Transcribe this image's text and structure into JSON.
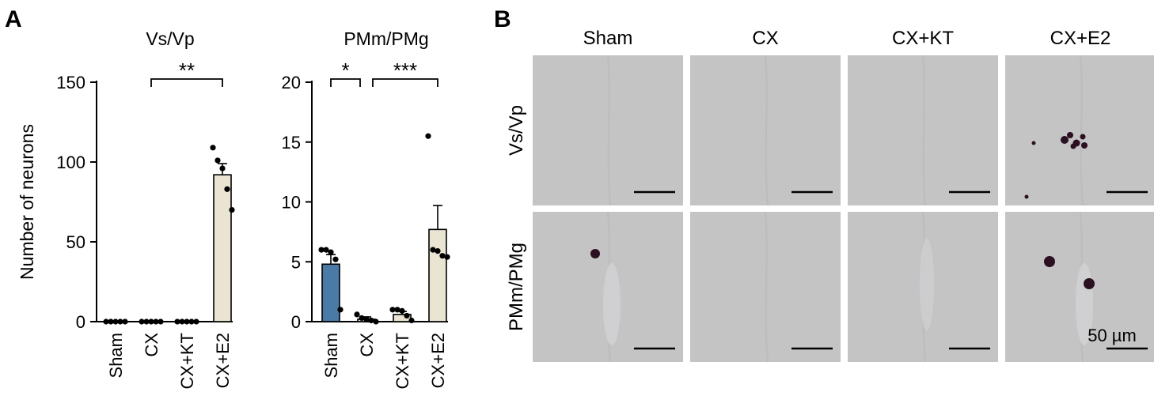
{
  "panel_labels": {
    "a": "A",
    "b": "B"
  },
  "chart_data": [
    {
      "type": "bar",
      "title": "Vs/Vp",
      "ylabel": "Number of neurons",
      "categories": [
        "Sham",
        "CX",
        "CX+KT",
        "CX+E2"
      ],
      "means": [
        0,
        0,
        0,
        92
      ],
      "sem": [
        0,
        0,
        0,
        7
      ],
      "points": [
        [
          0,
          0,
          0,
          0,
          0
        ],
        [
          0,
          0,
          0,
          0,
          0
        ],
        [
          0,
          0,
          0,
          0,
          0
        ],
        [
          109,
          101,
          96,
          83,
          70
        ]
      ],
      "ylim": [
        0,
        150
      ],
      "yticks": [
        0,
        50,
        100,
        150
      ],
      "bar_colors": [
        "#4a7aa6",
        "#eae4d3",
        "#eae4d3",
        "#eae4d3"
      ],
      "significance": [
        {
          "from": 1,
          "to": 3,
          "label": "**"
        }
      ]
    },
    {
      "type": "bar",
      "title": "PMm/PMg",
      "ylabel": "",
      "categories": [
        "Sham",
        "CX",
        "CX+KT",
        "CX+E2"
      ],
      "means": [
        4.8,
        0.2,
        0.6,
        7.7
      ],
      "sem": [
        0.8,
        0.2,
        0.25,
        2.0
      ],
      "points": [
        [
          6.0,
          6.0,
          5.8,
          5.2,
          1.0
        ],
        [
          0.6,
          0.3,
          0.2,
          0.1,
          0.0
        ],
        [
          1.0,
          1.0,
          0.9,
          0.5,
          0.1
        ],
        [
          15.5,
          6.0,
          5.9,
          5.5,
          5.4
        ]
      ],
      "ylim": [
        0,
        20
      ],
      "yticks": [
        0,
        5,
        10,
        15,
        20
      ],
      "bar_colors": [
        "#4a7aa6",
        "#eae4d3",
        "#eae4d3",
        "#eae4d3"
      ],
      "significance": [
        {
          "from": 0,
          "to": 1,
          "label": "*"
        },
        {
          "from": 1,
          "to": 3,
          "label": "***"
        }
      ]
    }
  ],
  "micrographs": {
    "columns": [
      "Sham",
      "CX",
      "CX+KT",
      "CX+E2"
    ],
    "rows": [
      "Vs/Vp",
      "PMm/PMg"
    ],
    "scale_bar_label": "50 µm",
    "background_color": "#c4c4c4",
    "stain_color": "#2a1020"
  },
  "colors": {
    "bar_blue": "#4a7aa6",
    "bar_beige": "#eae4d3",
    "axis": "#000000"
  }
}
